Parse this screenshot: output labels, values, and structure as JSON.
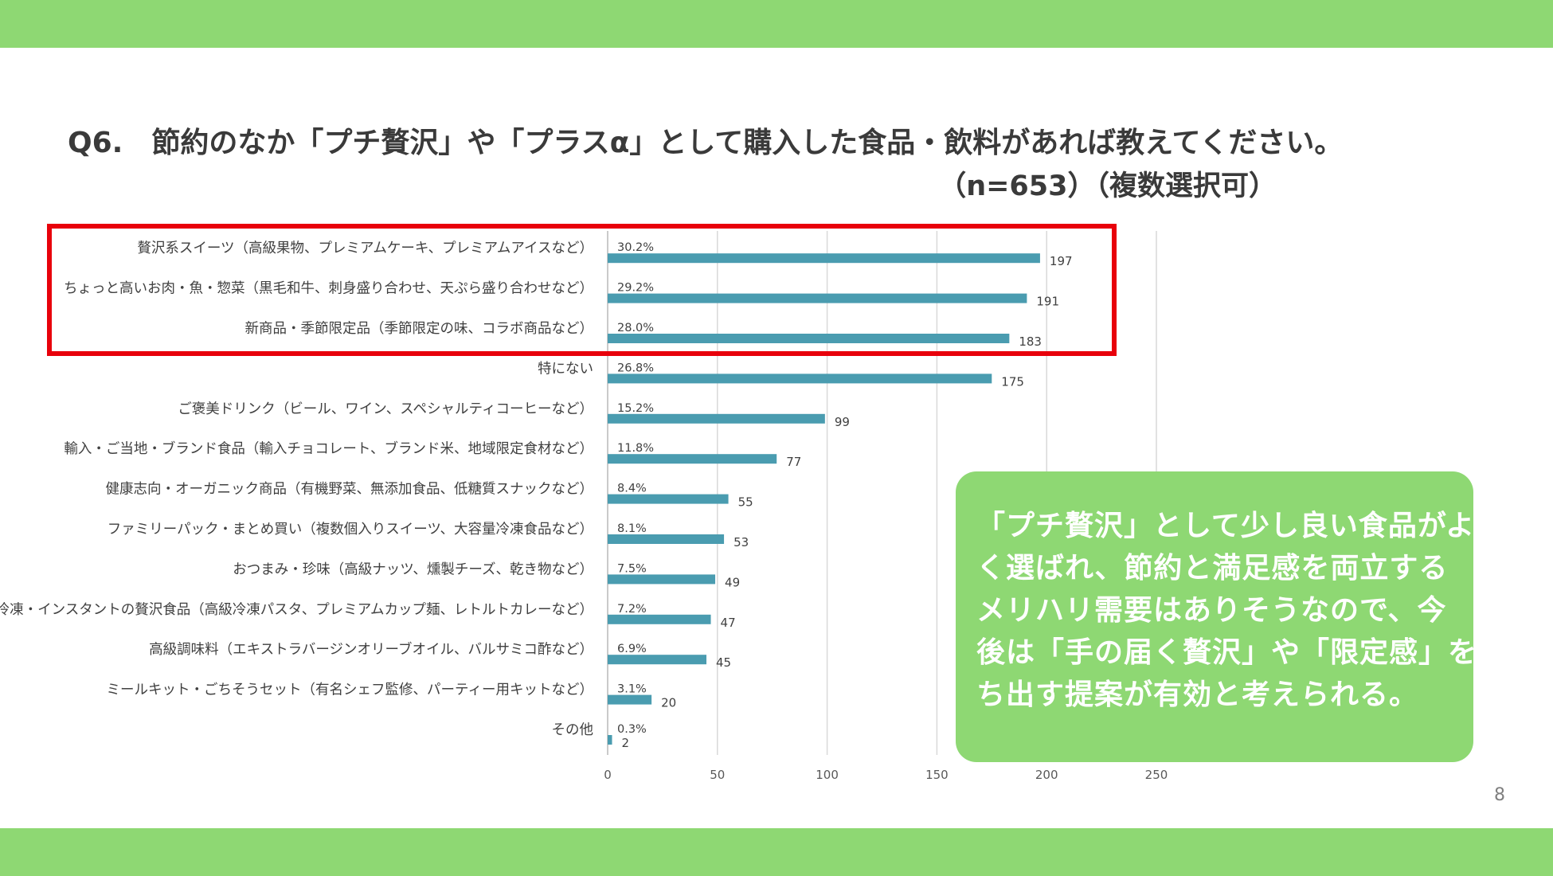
{
  "slide": {
    "title": "Q6.　節約のなか「プチ贅沢」や「プラスα」として購入した食品・飲料があれば教えてください。",
    "subtitle": "（n=653）（複数選択可）",
    "page_number": "8",
    "band_color": "#8ed873",
    "highlight_color": "#e8000b"
  },
  "comment": {
    "lines": [
      "「プチ贅沢」として少し良い食品がよ",
      "く選ばれ、節約と満足感を両立する",
      "メリハリ需要はありそうなので、今",
      "後は「手の届く贅沢」や「限定感」を打",
      "ち出す提案が有効と考えられる。"
    ]
  },
  "chart_data": {
    "type": "bar",
    "orientation": "horizontal",
    "bar_color": "#4a9cb0",
    "categories": [
      "贅沢系スイーツ（高級果物、プレミアムケーキ、プレミアムアイスなど）",
      "ちょっと高いお肉・魚・惣菜（黒毛和牛、刺身盛り合わせ、天ぷら盛り合わせなど）",
      "新商品・季節限定品（季節限定の味、コラボ商品など）",
      "特にない",
      "ご褒美ドリンク（ビール、ワイン、スペシャルティコーヒーなど）",
      "輸入・ご当地・ブランド食品（輸入チョコレート、ブランド米、地域限定食材など）",
      "健康志向・オーガニック商品（有機野菜、無添加食品、低糖質スナックなど）",
      "ファミリーパック・まとめ買い（複数個入りスイーツ、大容量冷凍食品など）",
      "おつまみ・珍味（高級ナッツ、燻製チーズ、乾き物など）",
      "冷凍・インスタントの贅沢食品（高級冷凍パスタ、プレミアムカップ麺、レトルトカレーなど）",
      "高級調味料（エキストラバージンオリーブオイル、バルサミコ酢など）",
      "ミールキット・ごちそうセット（有名シェフ監修、パーティー用キットなど）",
      "その他"
    ],
    "values": [
      197,
      191,
      183,
      175,
      99,
      77,
      55,
      53,
      49,
      47,
      45,
      20,
      2
    ],
    "percent_labels": [
      "30.2%",
      "29.2%",
      "28.0%",
      "26.8%",
      "15.2%",
      "11.8%",
      "8.4%",
      "8.1%",
      "7.5%",
      "7.2%",
      "6.9%",
      "3.1%",
      "0.3%"
    ],
    "xlim": [
      0,
      250
    ],
    "xticks": [
      0,
      50,
      100,
      150,
      200,
      250
    ],
    "grid": true,
    "highlighted_categories": 3
  }
}
